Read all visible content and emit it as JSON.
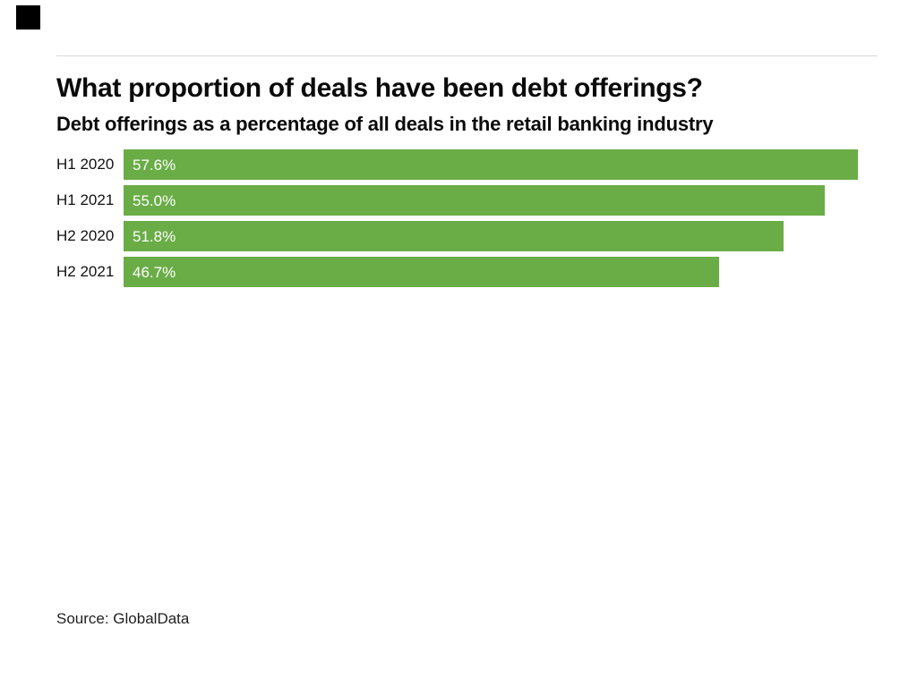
{
  "branding": {
    "logo_color": "#000000"
  },
  "header": {
    "title": "What proportion of deals have been debt offerings?",
    "subtitle": "Debt offerings as a percentage of all deals in the retail banking industry"
  },
  "chart_data": {
    "type": "bar",
    "orientation": "horizontal",
    "title": "What proportion of deals have been debt offerings?",
    "subtitle": "Debt offerings as a percentage of all deals in the retail banking industry",
    "categories": [
      "H1 2020",
      "H1 2021",
      "H2 2020",
      "H2 2021"
    ],
    "values": [
      57.6,
      55.0,
      51.8,
      46.7
    ],
    "value_labels": [
      "57.6%",
      "55.0%",
      "51.8%",
      "46.7%"
    ],
    "xlabel": "",
    "ylabel": "",
    "xlim": [
      0,
      57.6
    ],
    "grid": false,
    "legend": false,
    "bar_color": "#6aad47",
    "value_label_color": "#ffffff",
    "category_label_color": "#111111"
  },
  "footer": {
    "source": "Source: GlobalData"
  }
}
